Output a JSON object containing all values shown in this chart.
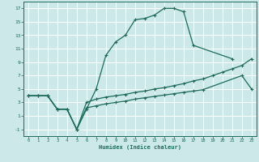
{
  "xlabel": "Humidex (Indice chaleur)",
  "bg_color": "#cde8e8",
  "grid_color": "#ffffff",
  "line_color": "#1a6b5a",
  "xlim": [
    -0.5,
    23.5
  ],
  "ylim": [
    -2,
    18
  ],
  "xticks": [
    0,
    1,
    2,
    3,
    4,
    5,
    6,
    7,
    8,
    9,
    10,
    11,
    12,
    13,
    14,
    15,
    16,
    17,
    18,
    19,
    20,
    21,
    22,
    23
  ],
  "yticks": [
    -1,
    1,
    3,
    5,
    7,
    9,
    11,
    13,
    15,
    17
  ],
  "main_x": [
    0,
    1,
    2,
    3,
    4,
    5,
    6,
    7,
    8,
    9,
    10,
    11,
    12,
    13,
    14,
    15,
    16,
    17,
    21
  ],
  "main_y": [
    4,
    4,
    4,
    2,
    2,
    -1,
    2,
    5,
    10,
    12,
    13,
    15.3,
    15.5,
    16,
    17,
    17,
    16.5,
    11.5,
    9.5
  ],
  "line2_x": [
    0,
    1,
    2,
    3,
    4,
    5,
    6,
    7,
    8,
    9,
    10,
    11,
    12,
    13,
    14,
    15,
    16,
    17,
    18,
    19,
    20,
    21,
    22,
    23
  ],
  "line2_y": [
    4,
    4,
    4,
    2,
    2,
    -1,
    3.0,
    3.5,
    3.8,
    4.0,
    4.2,
    4.5,
    4.7,
    5.0,
    5.2,
    5.5,
    5.8,
    6.2,
    6.5,
    7.0,
    7.5,
    8.0,
    8.5,
    9.5
  ],
  "line3_x": [
    0,
    1,
    2,
    3,
    4,
    5,
    6,
    7,
    8,
    9,
    10,
    11,
    12,
    13,
    14,
    15,
    16,
    17,
    18,
    22,
    23
  ],
  "line3_y": [
    4,
    4,
    4,
    2,
    2,
    -1,
    2.2,
    2.5,
    2.8,
    3.0,
    3.2,
    3.5,
    3.7,
    3.9,
    4.1,
    4.3,
    4.5,
    4.7,
    4.9,
    7.0,
    5.0
  ]
}
